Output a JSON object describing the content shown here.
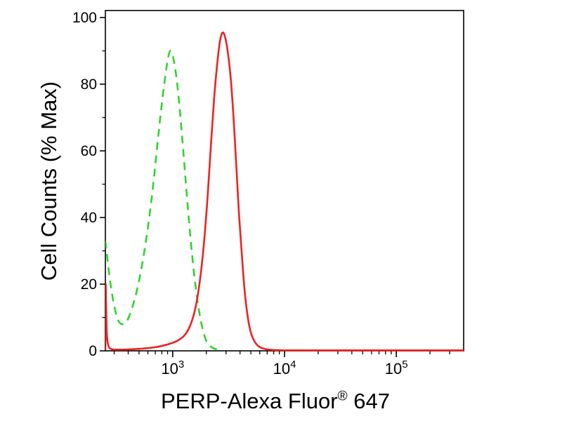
{
  "chart_data": {
    "type": "line",
    "title": "",
    "xlabel": "PERP-Alexa Fluor® 647",
    "xlabel_parts": {
      "pre": "PERP-Alexa Fluor",
      "sup": "®",
      "post": " 647"
    },
    "ylabel": "Cell Counts (% Max)",
    "x_scale": "log",
    "xlim": [
      250,
      400000
    ],
    "ylim": [
      0,
      100
    ],
    "grid": false,
    "legend_position": "none",
    "frame": true,
    "y_major_ticks": [
      0,
      20,
      40,
      60,
      80,
      100
    ],
    "y_minor_ticks": [
      10,
      30,
      50,
      70,
      90
    ],
    "x_major_ticks": [
      {
        "value": 1000,
        "label_base": "10",
        "label_exp": "3"
      },
      {
        "value": 10000,
        "label_base": "10",
        "label_exp": "4"
      },
      {
        "value": 100000,
        "label_base": "10",
        "label_exp": "5"
      }
    ],
    "colors": {
      "green_dashed": "#2fd32f",
      "red_solid": "#ee2222",
      "axis": "#000000"
    },
    "series": [
      {
        "name": "green-dashed-curve",
        "color": "#2fd32f",
        "dash": [
          11,
          8
        ],
        "width": 2.6,
        "points": [
          [
            250,
            33
          ],
          [
            262,
            27
          ],
          [
            278,
            20
          ],
          [
            298,
            14
          ],
          [
            322,
            9.5
          ],
          [
            352,
            8
          ],
          [
            390,
            9
          ],
          [
            435,
            13
          ],
          [
            485,
            19
          ],
          [
            540,
            27
          ],
          [
            600,
            37
          ],
          [
            660,
            48
          ],
          [
            720,
            60
          ],
          [
            780,
            71
          ],
          [
            840,
            80
          ],
          [
            900,
            87
          ],
          [
            950,
            90
          ],
          [
            1010,
            88
          ],
          [
            1080,
            82
          ],
          [
            1160,
            72
          ],
          [
            1250,
            59
          ],
          [
            1350,
            45
          ],
          [
            1460,
            32
          ],
          [
            1580,
            21
          ],
          [
            1720,
            12
          ],
          [
            1870,
            6
          ],
          [
            2030,
            2.5
          ],
          [
            2250,
            1
          ],
          [
            2500,
            0.4
          ],
          [
            2750,
            0.2
          ]
        ]
      },
      {
        "name": "red-solid-curve",
        "color": "#ee2222",
        "dash": [],
        "width": 2.6,
        "points": [
          [
            250,
            0.2
          ],
          [
            251,
            11
          ],
          [
            252,
            20
          ],
          [
            254,
            13
          ],
          [
            258,
            5
          ],
          [
            266,
            1.5
          ],
          [
            285,
            0.5
          ],
          [
            330,
            0.35
          ],
          [
            420,
            0.45
          ],
          [
            550,
            0.7
          ],
          [
            700,
            1.1
          ],
          [
            850,
            1.7
          ],
          [
            1000,
            2.4
          ],
          [
            1150,
            3.4
          ],
          [
            1300,
            5
          ],
          [
            1450,
            8
          ],
          [
            1600,
            13
          ],
          [
            1750,
            21
          ],
          [
            1900,
            32
          ],
          [
            2050,
            46
          ],
          [
            2200,
            62
          ],
          [
            2350,
            76
          ],
          [
            2500,
            86
          ],
          [
            2650,
            93
          ],
          [
            2800,
            95.5
          ],
          [
            2950,
            94
          ],
          [
            3100,
            90
          ],
          [
            3300,
            82
          ],
          [
            3500,
            70
          ],
          [
            3700,
            56
          ],
          [
            3900,
            42
          ],
          [
            4150,
            29
          ],
          [
            4400,
            18
          ],
          [
            4700,
            10
          ],
          [
            5000,
            5.5
          ],
          [
            5400,
            2.8
          ],
          [
            5900,
            1.3
          ],
          [
            6600,
            0.6
          ],
          [
            7600,
            0.3
          ],
          [
            9000,
            0.2
          ],
          [
            12000,
            0.15
          ],
          [
            50000,
            0.15
          ],
          [
            400000,
            0.15
          ]
        ]
      }
    ]
  }
}
